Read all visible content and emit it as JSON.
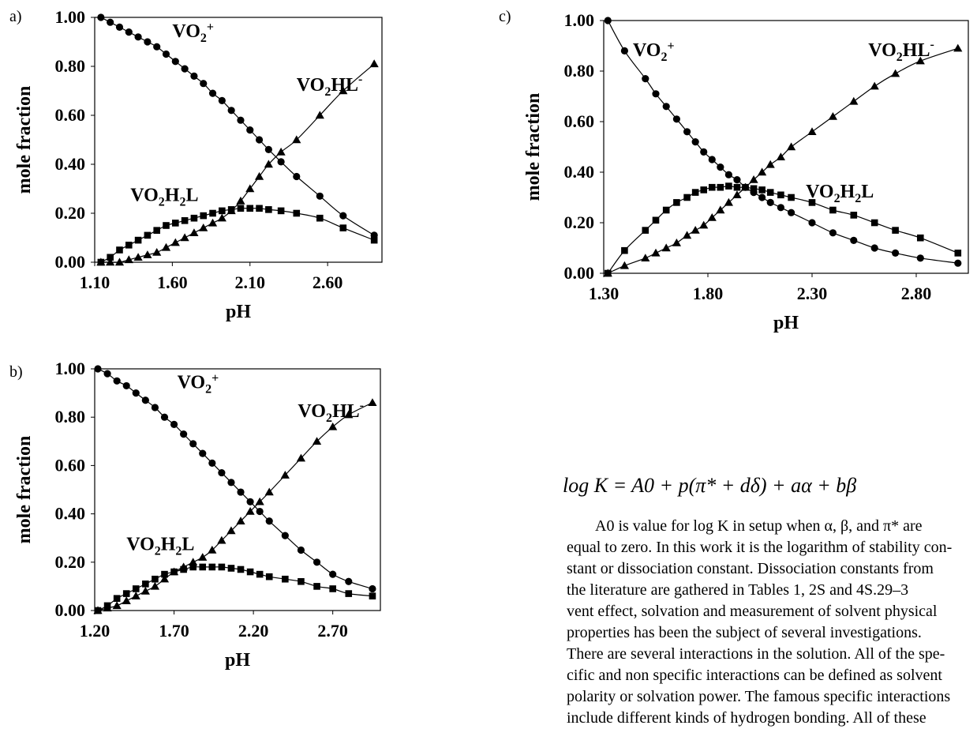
{
  "panels": [
    {
      "label": "a)"
    },
    {
      "label": "b)"
    },
    {
      "label": "c)"
    }
  ],
  "equation": "log K = A0 + p(π* + dδ) + aα + bβ",
  "text_lines": [
    "A0 is value for log K in setup when α, β, and π* are",
    "equal to zero. In this work it is the logarithm of stability con-",
    "stant or dissociation constant. Dissociation constants from",
    "the literature are gathered in Tables 1, 2S and 4S.29–3",
    "vent effect, solvation and measurement of solvent physical",
    "properties has been the subject of several investigations.",
    "There are several interactions in the solution. All of the spe-",
    "cific and non specific interactions can be defined as solvent",
    "polarity or solvation power. The famous specific interactions",
    "include different kinds of hydrogen bonding. All of these"
  ],
  "chart_data": [
    {
      "panel": "a)",
      "type": "line",
      "xlabel": "pH",
      "ylabel": "mole fraction",
      "xlim": [
        1.1,
        2.95
      ],
      "ylim": [
        0.0,
        1.0
      ],
      "xticks": [
        "1.10",
        "1.60",
        "2.10",
        "2.60"
      ],
      "yticks": [
        "0.00",
        "0.20",
        "0.40",
        "0.60",
        "0.80",
        "1.00"
      ],
      "species_labels": [
        {
          "text": "VO2+",
          "x": 1.6,
          "y": 0.92
        },
        {
          "text": "VO2HL-",
          "x": 2.4,
          "y": 0.7
        },
        {
          "text": "VO2H2L",
          "x": 1.33,
          "y": 0.25
        }
      ],
      "series": [
        {
          "name": "VO2+",
          "marker": "circle",
          "x": [
            1.14,
            1.2,
            1.26,
            1.32,
            1.38,
            1.44,
            1.5,
            1.56,
            1.62,
            1.68,
            1.74,
            1.8,
            1.86,
            1.92,
            1.98,
            2.04,
            2.1,
            2.16,
            2.22,
            2.3,
            2.4,
            2.55,
            2.7,
            2.9
          ],
          "y": [
            1.0,
            0.98,
            0.96,
            0.94,
            0.92,
            0.9,
            0.88,
            0.85,
            0.82,
            0.79,
            0.76,
            0.73,
            0.69,
            0.66,
            0.62,
            0.58,
            0.54,
            0.5,
            0.46,
            0.41,
            0.35,
            0.27,
            0.19,
            0.11
          ]
        },
        {
          "name": "VO2H2L",
          "marker": "square",
          "x": [
            1.14,
            1.2,
            1.26,
            1.32,
            1.38,
            1.44,
            1.5,
            1.56,
            1.62,
            1.68,
            1.74,
            1.8,
            1.86,
            1.92,
            1.98,
            2.04,
            2.1,
            2.16,
            2.22,
            2.3,
            2.4,
            2.55,
            2.7,
            2.9
          ],
          "y": [
            0.0,
            0.02,
            0.05,
            0.07,
            0.09,
            0.11,
            0.13,
            0.15,
            0.16,
            0.17,
            0.18,
            0.19,
            0.2,
            0.21,
            0.215,
            0.22,
            0.22,
            0.22,
            0.215,
            0.21,
            0.2,
            0.18,
            0.14,
            0.09
          ]
        },
        {
          "name": "VO2HL-",
          "marker": "triangle",
          "x": [
            1.14,
            1.2,
            1.26,
            1.32,
            1.38,
            1.44,
            1.5,
            1.56,
            1.62,
            1.68,
            1.74,
            1.8,
            1.86,
            1.92,
            1.98,
            2.04,
            2.1,
            2.16,
            2.22,
            2.3,
            2.4,
            2.55,
            2.7,
            2.9
          ],
          "y": [
            0.0,
            0.0,
            0.0,
            0.01,
            0.02,
            0.03,
            0.04,
            0.06,
            0.08,
            0.1,
            0.12,
            0.14,
            0.16,
            0.18,
            0.21,
            0.25,
            0.3,
            0.35,
            0.4,
            0.45,
            0.5,
            0.6,
            0.7,
            0.81
          ]
        }
      ]
    },
    {
      "panel": "b)",
      "type": "line",
      "xlabel": "pH",
      "ylabel": "mole fraction",
      "xlim": [
        1.2,
        3.0
      ],
      "ylim": [
        0.0,
        1.0
      ],
      "xticks": [
        "1.20",
        "1.70",
        "2.20",
        "2.70"
      ],
      "yticks": [
        "0.00",
        "0.20",
        "0.40",
        "0.60",
        "0.80",
        "1.00"
      ],
      "species_labels": [
        {
          "text": "VO2+",
          "x": 1.72,
          "y": 0.92
        },
        {
          "text": "VO2HL-",
          "x": 2.48,
          "y": 0.8
        },
        {
          "text": "VO2H2L",
          "x": 1.4,
          "y": 0.25
        }
      ],
      "series": [
        {
          "name": "VO2+",
          "marker": "circle",
          "x": [
            1.22,
            1.28,
            1.34,
            1.4,
            1.46,
            1.52,
            1.58,
            1.64,
            1.7,
            1.76,
            1.82,
            1.88,
            1.94,
            2.0,
            2.06,
            2.12,
            2.18,
            2.24,
            2.3,
            2.4,
            2.5,
            2.6,
            2.7,
            2.8,
            2.95
          ],
          "y": [
            1.0,
            0.98,
            0.95,
            0.93,
            0.9,
            0.87,
            0.84,
            0.8,
            0.77,
            0.73,
            0.69,
            0.65,
            0.61,
            0.57,
            0.53,
            0.49,
            0.45,
            0.41,
            0.37,
            0.31,
            0.25,
            0.2,
            0.15,
            0.12,
            0.09
          ]
        },
        {
          "name": "VO2H2L",
          "marker": "square",
          "x": [
            1.22,
            1.28,
            1.34,
            1.4,
            1.46,
            1.52,
            1.58,
            1.64,
            1.7,
            1.76,
            1.82,
            1.88,
            1.94,
            2.0,
            2.06,
            2.12,
            2.18,
            2.24,
            2.3,
            2.4,
            2.5,
            2.6,
            2.7,
            2.8,
            2.95
          ],
          "y": [
            0.0,
            0.02,
            0.05,
            0.07,
            0.09,
            0.11,
            0.13,
            0.15,
            0.16,
            0.17,
            0.18,
            0.18,
            0.18,
            0.18,
            0.175,
            0.17,
            0.16,
            0.15,
            0.14,
            0.13,
            0.12,
            0.1,
            0.09,
            0.07,
            0.06
          ]
        },
        {
          "name": "VO2HL-",
          "marker": "triangle",
          "x": [
            1.22,
            1.28,
            1.34,
            1.4,
            1.46,
            1.52,
            1.58,
            1.64,
            1.7,
            1.76,
            1.82,
            1.88,
            1.94,
            2.0,
            2.06,
            2.12,
            2.18,
            2.24,
            2.3,
            2.4,
            2.5,
            2.6,
            2.7,
            2.8,
            2.95
          ],
          "y": [
            0.0,
            0.01,
            0.02,
            0.04,
            0.06,
            0.08,
            0.1,
            0.13,
            0.16,
            0.18,
            0.2,
            0.22,
            0.25,
            0.29,
            0.33,
            0.37,
            0.41,
            0.45,
            0.49,
            0.56,
            0.63,
            0.7,
            0.76,
            0.81,
            0.86
          ]
        }
      ]
    },
    {
      "panel": "c)",
      "type": "line",
      "xlabel": "pH",
      "ylabel": "mole fraction",
      "xlim": [
        1.3,
        3.05
      ],
      "ylim": [
        0.0,
        1.0
      ],
      "xticks": [
        "1.30",
        "1.80",
        "2.30",
        "2.80"
      ],
      "yticks": [
        "0.00",
        "0.20",
        "0.40",
        "0.60",
        "0.80",
        "1.00"
      ],
      "species_labels": [
        {
          "text": "VO2+",
          "x": 1.44,
          "y": 0.86
        },
        {
          "text": "VO2HL-",
          "x": 2.57,
          "y": 0.86
        },
        {
          "text": "VO2H2L",
          "x": 2.27,
          "y": 0.3
        }
      ],
      "series": [
        {
          "name": "VO2+",
          "marker": "circle",
          "x": [
            1.32,
            1.4,
            1.5,
            1.55,
            1.6,
            1.65,
            1.7,
            1.74,
            1.78,
            1.82,
            1.86,
            1.9,
            1.94,
            1.98,
            2.02,
            2.06,
            2.1,
            2.15,
            2.2,
            2.3,
            2.4,
            2.5,
            2.6,
            2.7,
            2.82,
            3.0
          ],
          "y": [
            1.0,
            0.88,
            0.77,
            0.71,
            0.66,
            0.61,
            0.56,
            0.52,
            0.48,
            0.45,
            0.42,
            0.39,
            0.37,
            0.34,
            0.32,
            0.3,
            0.28,
            0.26,
            0.24,
            0.2,
            0.16,
            0.13,
            0.1,
            0.08,
            0.06,
            0.04
          ]
        },
        {
          "name": "VO2H2L",
          "marker": "square",
          "x": [
            1.32,
            1.4,
            1.5,
            1.55,
            1.6,
            1.65,
            1.7,
            1.74,
            1.78,
            1.82,
            1.86,
            1.9,
            1.94,
            1.98,
            2.02,
            2.06,
            2.1,
            2.15,
            2.2,
            2.3,
            2.4,
            2.5,
            2.6,
            2.7,
            2.82,
            3.0
          ],
          "y": [
            0.0,
            0.09,
            0.17,
            0.21,
            0.25,
            0.28,
            0.3,
            0.32,
            0.33,
            0.34,
            0.34,
            0.345,
            0.34,
            0.34,
            0.335,
            0.33,
            0.32,
            0.31,
            0.3,
            0.28,
            0.25,
            0.23,
            0.2,
            0.17,
            0.14,
            0.08
          ]
        },
        {
          "name": "VO2HL-",
          "marker": "triangle",
          "x": [
            1.32,
            1.4,
            1.5,
            1.55,
            1.6,
            1.65,
            1.7,
            1.74,
            1.78,
            1.82,
            1.86,
            1.9,
            1.94,
            1.98,
            2.02,
            2.06,
            2.1,
            2.15,
            2.2,
            2.3,
            2.4,
            2.5,
            2.6,
            2.7,
            2.82,
            3.0
          ],
          "y": [
            0.0,
            0.03,
            0.06,
            0.08,
            0.1,
            0.12,
            0.15,
            0.17,
            0.19,
            0.22,
            0.25,
            0.28,
            0.31,
            0.34,
            0.37,
            0.4,
            0.43,
            0.46,
            0.5,
            0.56,
            0.62,
            0.68,
            0.74,
            0.79,
            0.84,
            0.89
          ]
        }
      ]
    }
  ]
}
